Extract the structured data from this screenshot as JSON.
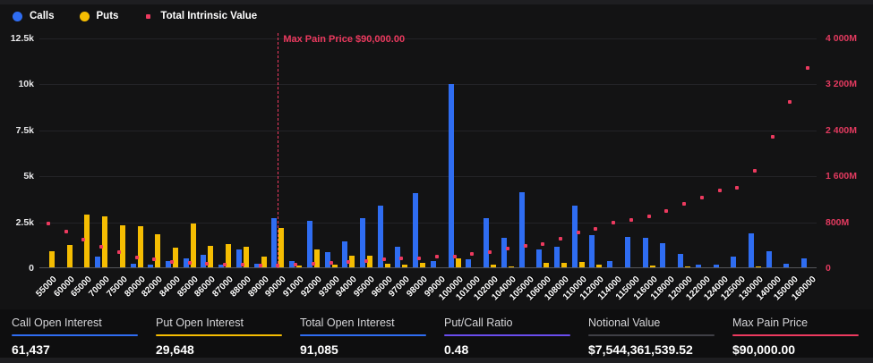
{
  "colors": {
    "calls": "#2f6df2",
    "puts": "#f5bd02",
    "intrinsic": "#ec3a5f"
  },
  "legend": {
    "items": [
      {
        "label": "Calls",
        "marker": "circle",
        "color_key": "calls"
      },
      {
        "label": "Puts",
        "marker": "circle",
        "color_key": "puts"
      },
      {
        "label": "Total Intrinsic Value",
        "marker": "square",
        "color_key": "intrinsic"
      }
    ]
  },
  "annotation": {
    "max_pain_label": "Max Pain Price $90,000.00",
    "strike": "90000"
  },
  "chart_data": {
    "type": "bar",
    "legend_position": "top",
    "grid": true,
    "categories": [
      "55000",
      "60000",
      "65000",
      "70000",
      "75000",
      "80000",
      "82000",
      "84000",
      "85000",
      "86000",
      "87000",
      "88000",
      "89000",
      "90000",
      "91000",
      "92000",
      "93000",
      "94000",
      "95000",
      "96000",
      "97000",
      "98000",
      "99000",
      "100000",
      "101000",
      "102000",
      "104000",
      "105000",
      "106000",
      "108000",
      "110000",
      "112000",
      "114000",
      "115000",
      "116000",
      "118000",
      "120000",
      "122000",
      "124000",
      "125000",
      "130000",
      "140000",
      "150000",
      "160000"
    ],
    "series": [
      {
        "name": "Calls",
        "axis": "left",
        "mark": "bar",
        "values": [
          0,
          0,
          0,
          570,
          0,
          180,
          130,
          350,
          490,
          680,
          130,
          970,
          210,
          2670,
          340,
          2520,
          840,
          1420,
          2680,
          3360,
          1130,
          4040,
          330,
          9950,
          450,
          2670,
          1620,
          4070,
          950,
          1130,
          3350,
          1730,
          330,
          1650,
          1590,
          1320,
          730,
          130,
          160,
          570,
          1830,
          890,
          210,
          490
        ]
      },
      {
        "name": "Puts",
        "axis": "left",
        "mark": "bar",
        "values": [
          860,
          1230,
          2860,
          2780,
          2290,
          2230,
          1780,
          1080,
          2380,
          1180,
          1250,
          1140,
          570,
          2130,
          110,
          970,
          160,
          620,
          620,
          190,
          130,
          240,
          0,
          490,
          0,
          160,
          50,
          0,
          240,
          240,
          280,
          160,
          0,
          0,
          110,
          0,
          60,
          0,
          0,
          0,
          40,
          0,
          0,
          0
        ]
      },
      {
        "name": "Total Intrinsic Value",
        "axis": "right",
        "mark": "point",
        "values": [
          765,
          625,
          480,
          360,
          262,
          172,
          140,
          98,
          82,
          66,
          52,
          42,
          34,
          25,
          45,
          66,
          82,
          90,
          105,
          138,
          155,
          158,
          182,
          192,
          232,
          262,
          322,
          378,
          400,
          493,
          607,
          674,
          778,
          829,
          882,
          985,
          1109,
          1218,
          1333,
          1385,
          1676,
          2276,
          2873,
          3474
        ]
      }
    ],
    "y_left": {
      "ticks": [
        0,
        2500,
        5000,
        7500,
        10000,
        12500
      ],
      "labels": [
        "0",
        "2.5k",
        "5k",
        "7.5k",
        "10k",
        "12.5k"
      ],
      "max": 12500
    },
    "y_right": {
      "ticks": [
        0,
        800,
        1600,
        2400,
        3200,
        4000
      ],
      "labels": [
        "0",
        "800M",
        "1 600M",
        "2 400M",
        "3 200M",
        "4 000M"
      ],
      "max": 4000,
      "unit": "M"
    }
  },
  "stats": {
    "items": [
      {
        "label": "Call Open Interest",
        "value": "61,437",
        "underline": "#2f6df2"
      },
      {
        "label": "Put Open Interest",
        "value": "29,648",
        "underline": "#f5bd02"
      },
      {
        "label": "Total Open Interest",
        "value": "91,085",
        "underline": "#2f6df2"
      },
      {
        "label": "Put/Call Ratio",
        "value": "0.48",
        "underline": "#6a4ded"
      },
      {
        "label": "Notional Value",
        "value": "$7,544,361,539.52",
        "underline": "#3f3f46"
      },
      {
        "label": "Max Pain Price",
        "value": "$90,000.00",
        "underline": "#ec3a5f"
      }
    ]
  }
}
